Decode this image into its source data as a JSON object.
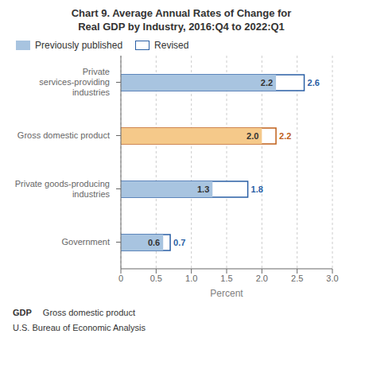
{
  "chart_data": {
    "type": "bar",
    "orientation": "horizontal",
    "title": "Chart 9. Average Annual Rates of Change for",
    "subtitle": "Real GDP by Industry, 2016:Q4 to 2022:Q1",
    "x_label": "Percent",
    "categories": [
      "Government",
      "Private goods-producing industries",
      "Gross domestic product",
      "Private services-providing industries"
    ],
    "series": [
      {
        "name": "Previously published",
        "color": "#a8c4e0",
        "colors": [
          "#a8c4e0",
          "#a8c4e0",
          "#f5c98a",
          "#a8c4e0"
        ],
        "values": [
          0.6,
          1.3,
          2.0,
          2.2
        ],
        "value_labels": [
          "0.6",
          "1.3",
          "2.0",
          "2.2"
        ]
      },
      {
        "name": "Revised",
        "color": "#2a5fa5",
        "colors": [
          "#2a5fa5",
          "#2a5fa5",
          "#c0601a",
          "#2a5fa5"
        ],
        "values": [
          0.7,
          1.8,
          2.2,
          2.6
        ],
        "value_labels": [
          "0.7",
          "1.8",
          "2.2",
          "2.6"
        ]
      }
    ],
    "xlim": [
      0,
      3.0
    ],
    "xticks": [
      0,
      0.5,
      {
        "value": 1,
        "label": "1.0"
      },
      1.5,
      {
        "value": 2,
        "label": "2.0"
      },
      2.5,
      {
        "value": 3,
        "label": "3.0"
      }
    ],
    "grid": true,
    "data_labels": true,
    "legend": "top",
    "annotations": [
      "GDP",
      "Gross domestic product",
      "U.S. Bureau of Economic Analysis"
    ]
  }
}
